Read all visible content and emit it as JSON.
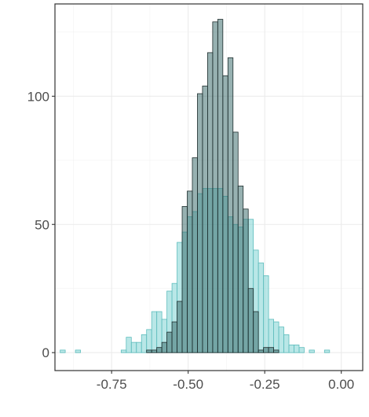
{
  "chart_data": {
    "type": "histogram",
    "title": "",
    "xlabel": "",
    "ylabel": "",
    "bin_width": 0.0166,
    "x_first_bin_left": -0.918,
    "xlim": [
      -0.935,
      0.07
    ],
    "ylim": [
      -7,
      136
    ],
    "x_ticks": [
      -0.75,
      -0.5,
      -0.25,
      0.0
    ],
    "x_tick_labels": [
      "-0.75",
      "-0.50",
      "-0.25",
      "0.00"
    ],
    "y_ticks": [
      0,
      50,
      100
    ],
    "y_tick_labels": [
      "0",
      "50",
      "100"
    ],
    "grid": true,
    "legend": "none",
    "series": [
      {
        "fill": "#7fd3d3",
        "stroke": "#5ebdbd",
        "opacity": 0.55,
        "values": [
          1,
          0,
          0,
          1,
          0,
          0,
          0,
          0,
          0,
          0,
          0,
          0,
          1,
          6,
          4,
          4,
          7,
          9,
          16,
          16,
          13,
          24,
          27,
          43,
          47,
          53,
          55,
          62,
          64,
          64,
          64,
          64,
          61,
          53,
          50,
          49,
          52,
          52,
          40,
          35,
          30,
          13,
          12,
          10,
          7,
          3,
          3,
          2,
          0,
          1,
          0,
          0,
          1
        ]
      },
      {
        "fill": "#2f6464",
        "stroke": "#1e2d2d",
        "opacity": 0.5,
        "values": [
          0,
          0,
          0,
          0,
          0,
          0,
          0,
          0,
          0,
          0,
          0,
          0,
          0,
          0,
          0,
          0,
          0,
          1,
          1,
          2,
          4,
          8,
          12,
          20,
          57,
          63,
          76,
          101,
          104,
          117,
          129,
          130,
          108,
          115,
          86,
          65,
          56,
          25,
          16,
          1,
          2,
          2,
          1,
          0,
          0,
          0,
          0,
          0,
          0,
          0,
          0,
          0,
          0
        ]
      }
    ]
  }
}
